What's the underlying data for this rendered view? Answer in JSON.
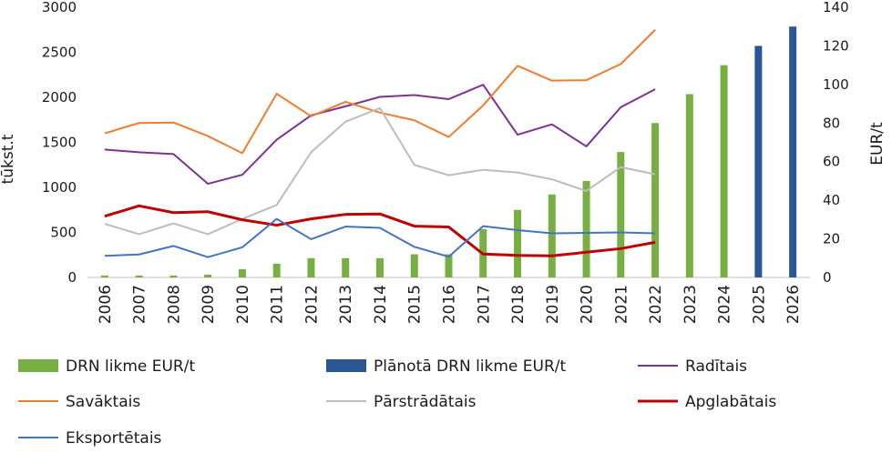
{
  "chart_data": {
    "type": "bar",
    "categories": [
      "2006",
      "2007",
      "2008",
      "2009",
      "2010",
      "2011",
      "2012",
      "2013",
      "2014",
      "2015",
      "2016",
      "2017",
      "2018",
      "2019",
      "2020",
      "2021",
      "2022",
      "2023",
      "2024",
      "2025",
      "2026"
    ],
    "y_left": {
      "label": "tūkst.t",
      "ylim": [
        0,
        3000
      ],
      "ticks": [
        0,
        500,
        1000,
        1500,
        2000,
        2500,
        3000
      ]
    },
    "y_right": {
      "label": "EUR/t",
      "ylim": [
        0,
        140
      ],
      "ticks": [
        0,
        20,
        40,
        60,
        80,
        100,
        120,
        140
      ]
    },
    "grid": false,
    "legend_position": "bottom",
    "bar_series": [
      {
        "name": "DRN likme EUR/t",
        "axis": "right",
        "color": "#76b043",
        "values": [
          1.0,
          1.0,
          1.0,
          1.4,
          4.3,
          7.1,
          10.0,
          10.0,
          10.0,
          12.0,
          12.0,
          25.0,
          35.0,
          43.0,
          50.0,
          65.0,
          80.0,
          95.0,
          110.0,
          null,
          null
        ]
      },
      {
        "name": "Plānotā DRN likme EUR/t",
        "axis": "right",
        "color": "#2c5593",
        "values": [
          null,
          null,
          null,
          null,
          null,
          null,
          null,
          null,
          null,
          null,
          null,
          null,
          null,
          null,
          null,
          null,
          null,
          null,
          null,
          120.0,
          130.0
        ]
      }
    ],
    "line_series": [
      {
        "name": "Radītais",
        "axis": "left",
        "color": "#7b3294",
        "width": 2,
        "values": [
          1420,
          1390,
          1370,
          1040,
          1140,
          1530,
          1800,
          1900,
          2005,
          2025,
          1980,
          2140,
          1585,
          1700,
          1455,
          1890,
          2090
        ]
      },
      {
        "name": "Savāktais",
        "axis": "left",
        "color": "#ed7d31",
        "width": 2,
        "values": [
          1600,
          1715,
          1720,
          1570,
          1380,
          2040,
          1790,
          1950,
          1830,
          1745,
          1560,
          1910,
          2350,
          2185,
          2190,
          2370,
          2750
        ]
      },
      {
        "name": "Pārstrādātais",
        "axis": "left",
        "color": "#bcbcbc",
        "width": 2,
        "values": [
          595,
          480,
          600,
          480,
          650,
          805,
          1390,
          1730,
          1880,
          1250,
          1135,
          1195,
          1165,
          1090,
          960,
          1225,
          1145
        ]
      },
      {
        "name": "Apglabātais",
        "axis": "left",
        "color": "#c00000",
        "width": 3,
        "values": [
          680,
          795,
          720,
          730,
          640,
          580,
          650,
          700,
          705,
          570,
          560,
          260,
          245,
          240,
          280,
          320,
          390
        ]
      },
      {
        "name": "Eksportētais",
        "axis": "left",
        "color": "#4472c4",
        "width": 2,
        "values": [
          240,
          255,
          350,
          225,
          335,
          650,
          425,
          565,
          550,
          340,
          230,
          570,
          525,
          490,
          495,
          500,
          490
        ]
      }
    ]
  }
}
